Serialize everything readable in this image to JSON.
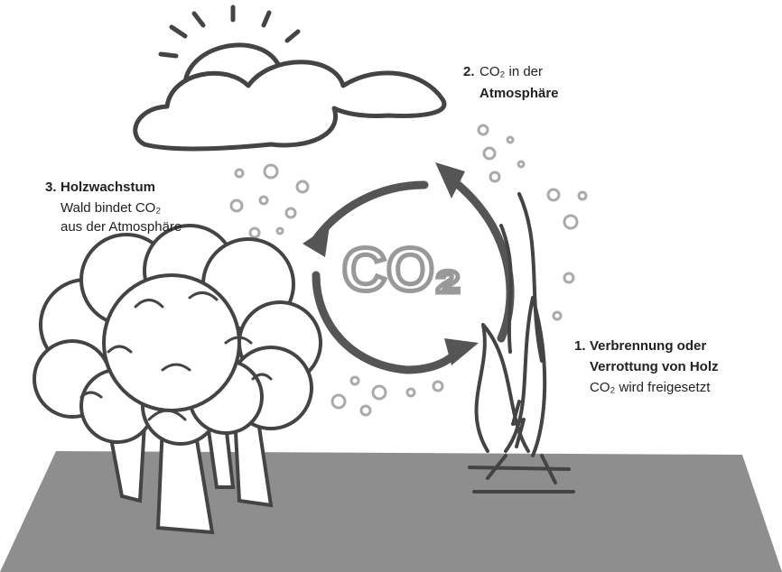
{
  "center_label": "CO₂",
  "steps": [
    {
      "number": "1.",
      "title_lines": [
        "Verbrennung oder",
        "Verrottung von Holz"
      ],
      "text_lines": [
        "CO₂ wird freigesetzt"
      ]
    },
    {
      "number": "2.",
      "text_lines": [
        "CO₂ in der"
      ],
      "title_lines": [
        "Atmosphäre"
      ]
    },
    {
      "number": "3.",
      "title_lines": [
        "Holzwachstum"
      ],
      "text_lines": [
        "Wald bindet CO₂",
        "aus der Atmosphäre"
      ]
    }
  ]
}
